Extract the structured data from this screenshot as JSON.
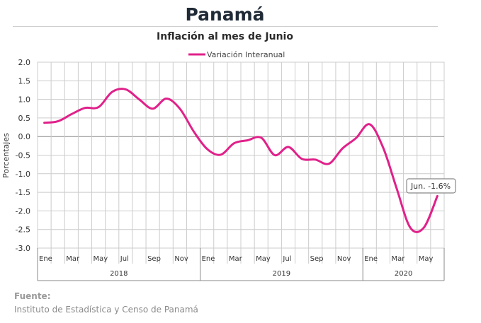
{
  "header": {
    "title": "Panamá",
    "subtitle": "Inflación al mes de Junio"
  },
  "source": {
    "label": "Fuente:",
    "text": "Instituto de Estadística y Censo de Panamá"
  },
  "colors": {
    "line": "#e0218a",
    "grid": "#cccccc",
    "axis": "#888888",
    "callout_border": "#888888"
  },
  "chart_data": {
    "type": "line",
    "title": "Inflación al mes de Junio",
    "xlabel": "",
    "ylabel": "Porcentajes",
    "ylim": [
      -3.0,
      2.0
    ],
    "ytick_step": 0.5,
    "ytick_labels": [
      "2.0",
      "1.5",
      "1.0",
      "0.5",
      "0.0",
      "-0.5",
      "-1.0",
      "-1.5",
      "-2.0",
      "-2.5",
      "-3.0"
    ],
    "grid": true,
    "legend_position": "top",
    "x": [
      "2018-01",
      "2018-02",
      "2018-03",
      "2018-04",
      "2018-05",
      "2018-06",
      "2018-07",
      "2018-08",
      "2018-09",
      "2018-10",
      "2018-11",
      "2018-12",
      "2019-01",
      "2019-02",
      "2019-03",
      "2019-04",
      "2019-05",
      "2019-06",
      "2019-07",
      "2019-08",
      "2019-09",
      "2019-10",
      "2019-11",
      "2019-12",
      "2020-01",
      "2020-02",
      "2020-03",
      "2020-04",
      "2020-05",
      "2020-06"
    ],
    "month_labels": [
      "Ene",
      "",
      "Mar",
      "",
      "May",
      "",
      "Jul",
      "",
      "Sep",
      "",
      "Nov",
      "",
      "Ene",
      "",
      "Mar",
      "",
      "May",
      "",
      "Jul",
      "",
      "Sep",
      "",
      "Nov",
      "",
      "Ene",
      "",
      "Mar",
      "",
      "May",
      ""
    ],
    "year_groups": [
      {
        "label": "2018",
        "months": 12
      },
      {
        "label": "2019",
        "months": 12
      },
      {
        "label": "2020",
        "months": 6
      }
    ],
    "series": [
      {
        "name": "Variación Interanual",
        "values": [
          0.37,
          0.41,
          0.6,
          0.77,
          0.79,
          1.2,
          1.27,
          1.0,
          0.75,
          1.02,
          0.75,
          0.15,
          -0.33,
          -0.49,
          -0.18,
          -0.1,
          -0.03,
          -0.5,
          -0.28,
          -0.6,
          -0.62,
          -0.73,
          -0.32,
          -0.04,
          0.33,
          -0.3,
          -1.4,
          -2.45,
          -2.45,
          -1.6
        ]
      }
    ],
    "annotations": [
      {
        "text": "Jun. -1.6%",
        "x": "2020-06",
        "y": -1.6
      }
    ]
  }
}
